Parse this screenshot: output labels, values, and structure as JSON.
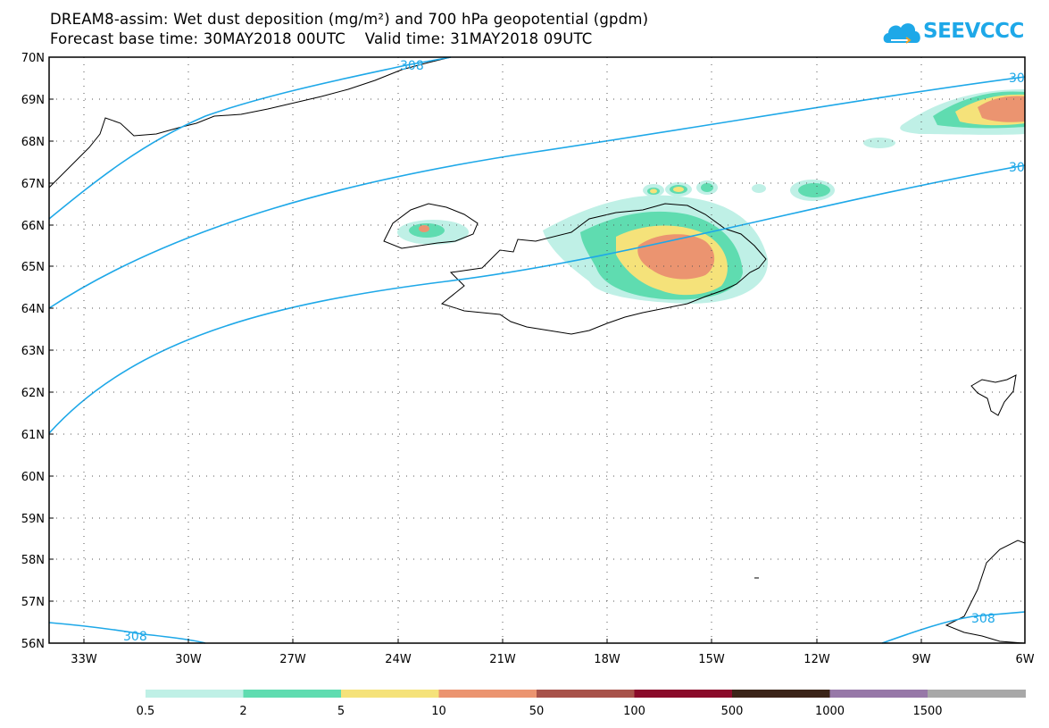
{
  "header": {
    "title_line1": "DREAM8-assim: Wet dust deposition (mg/m²) and 700 hPa geopotential (gpdm)",
    "title_line2": "Forecast base time: 30MAY2018 00UTC    Valid time: 31MAY2018 09UTC"
  },
  "logo": {
    "text": "SEEVCCC",
    "color": "#1ea8e8"
  },
  "map": {
    "lat_labels": [
      "70N",
      "69N",
      "68N",
      "67N",
      "66N",
      "65N",
      "64N",
      "63N",
      "62N",
      "61N",
      "60N",
      "59N",
      "58N",
      "57N",
      "56N"
    ],
    "lon_labels": [
      "33W",
      "30W",
      "27W",
      "24W",
      "21W",
      "18W",
      "15W",
      "12W",
      "9W",
      "6W"
    ],
    "contour_labels": [
      "308",
      "30",
      "30",
      "308",
      "308"
    ],
    "contour_color": "#1ea8e8"
  },
  "colorbar": {
    "colors": [
      "#bff0e6",
      "#5fdcb0",
      "#f5e27a",
      "#eb9470",
      "#a8524a",
      "#8a0b2a",
      "#3b2418",
      "#9778a8",
      "#a8a8a8"
    ],
    "labels": [
      "0.5",
      "2",
      "5",
      "10",
      "50",
      "100",
      "500",
      "1000",
      "1500"
    ]
  }
}
